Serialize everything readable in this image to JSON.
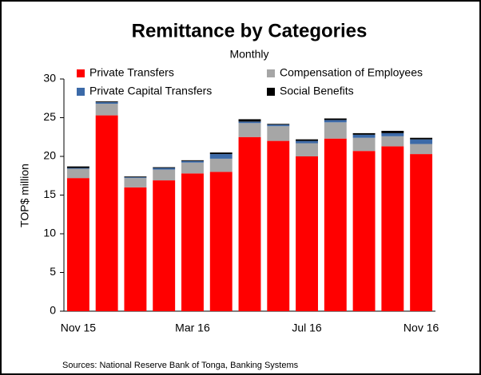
{
  "chart_data": {
    "type": "stacked_bar",
    "title": "Remittance by Categories",
    "subtitle": "Monthly",
    "y_label": "TOP$ million",
    "categories": [
      "Nov 15",
      null,
      null,
      null,
      "Mar 16",
      null,
      null,
      null,
      "Jul 16",
      null,
      null,
      null,
      "Nov 16"
    ],
    "series": [
      {
        "name": "Private Transfers",
        "color": "#ff0000",
        "values": [
          17.2,
          25.3,
          16.0,
          16.9,
          17.8,
          18.0,
          22.5,
          22.0,
          20.0,
          22.3,
          20.7,
          21.3,
          20.3
        ]
      },
      {
        "name": "Compensation of Employees",
        "color": "#a6a6a6",
        "values": [
          1.2,
          1.5,
          1.2,
          1.4,
          1.4,
          1.7,
          1.8,
          1.9,
          1.7,
          2.1,
          1.7,
          1.3,
          1.3
        ]
      },
      {
        "name": "Private Capital Transfers",
        "color": "#3c6aa8",
        "values": [
          0.1,
          0.2,
          0.1,
          0.2,
          0.2,
          0.6,
          0.2,
          0.2,
          0.3,
          0.3,
          0.4,
          0.4,
          0.6
        ]
      },
      {
        "name": "Social Benefits",
        "color": "#000000",
        "values": [
          0.2,
          0.1,
          0.1,
          0.1,
          0.1,
          0.2,
          0.3,
          0.1,
          0.2,
          0.2,
          0.2,
          0.3,
          0.2
        ]
      }
    ],
    "ylim": [
      0,
      30
    ],
    "yticks": [
      0,
      5,
      10,
      15,
      20,
      25,
      30
    ],
    "grid": false,
    "source": "Sources: National Reserve Bank of Tonga, Banking Systems"
  }
}
